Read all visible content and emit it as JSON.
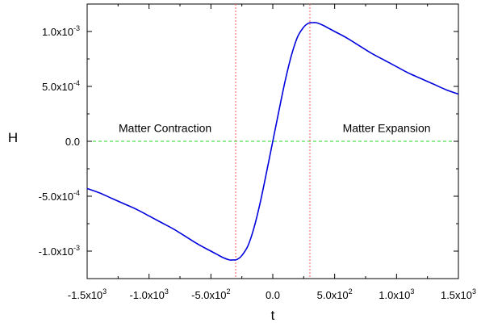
{
  "chart_data": {
    "type": "line",
    "title": "",
    "xlabel": "t",
    "ylabel": "H",
    "xlim": [
      -1500,
      1500
    ],
    "ylim": [
      -0.00125,
      0.00125
    ],
    "grid": false,
    "legend": "none",
    "x_ticks": [
      {
        "value": -1500,
        "mantissa": "-1.5x10",
        "exp": "3"
      },
      {
        "value": -1000,
        "mantissa": "-1.0x10",
        "exp": "3"
      },
      {
        "value": -500,
        "mantissa": "-5.0x10",
        "exp": "2"
      },
      {
        "value": 0,
        "mantissa": "0.0",
        "exp": ""
      },
      {
        "value": 500,
        "mantissa": "5.0x10",
        "exp": "2"
      },
      {
        "value": 1000,
        "mantissa": "1.0x10",
        "exp": "3"
      },
      {
        "value": 1500,
        "mantissa": "1.5x10",
        "exp": "3"
      }
    ],
    "y_ticks": [
      {
        "value": 0.001,
        "mantissa": "1.0x10",
        "exp": "-3"
      },
      {
        "value": 0.0005,
        "mantissa": "5.0x10",
        "exp": "-4"
      },
      {
        "value": 0,
        "mantissa": "0.0",
        "exp": ""
      },
      {
        "value": -0.0005,
        "mantissa": "-5.0x10",
        "exp": "-4"
      },
      {
        "value": -0.001,
        "mantissa": "-1.0x10",
        "exp": "-3"
      }
    ],
    "series": [
      {
        "color": "#0000dd",
        "x": [
          -1500,
          -1400,
          -1300,
          -1200,
          -1100,
          -1000,
          -900,
          -800,
          -700,
          -600,
          -500,
          -450,
          -400,
          -350,
          -320,
          -300,
          -280,
          -250,
          -200,
          -150,
          -100,
          -50,
          0,
          50,
          100,
          150,
          200,
          250,
          280,
          300,
          320,
          350,
          400,
          450,
          500,
          600,
          700,
          800,
          900,
          1000,
          1100,
          1200,
          1300,
          1400,
          1500
        ],
        "y": [
          -0.00043,
          -0.00047,
          -0.00052,
          -0.00057,
          -0.00062,
          -0.00068,
          -0.00074,
          -0.0008,
          -0.00087,
          -0.00094,
          -0.001,
          -0.00103,
          -0.00106,
          -0.00108,
          -0.00108,
          -0.00108,
          -0.00107,
          -0.00104,
          -0.00095,
          -0.00078,
          -0.00055,
          -0.00028,
          0,
          0.00028,
          0.00055,
          0.00078,
          0.00095,
          0.00104,
          0.00107,
          0.00108,
          0.00108,
          0.00108,
          0.00106,
          0.00103,
          0.001,
          0.00094,
          0.00087,
          0.0008,
          0.00074,
          0.00068,
          0.00062,
          0.00057,
          0.00052,
          0.00047,
          0.00043
        ]
      }
    ],
    "reference_lines": [
      {
        "orientation": "horizontal",
        "value": 0,
        "color": "#22dd22",
        "style": "dashed"
      },
      {
        "orientation": "vertical",
        "value": -300,
        "color": "#ff5555",
        "style": "dotted"
      },
      {
        "orientation": "vertical",
        "value": 300,
        "color": "#ff5555",
        "style": "dotted"
      }
    ],
    "annotations": [
      {
        "text": "Matter Contraction",
        "x": -870,
        "y": 0.00012
      },
      {
        "text": "Matter Expansion",
        "x": 920,
        "y": 0.00012
      }
    ]
  }
}
